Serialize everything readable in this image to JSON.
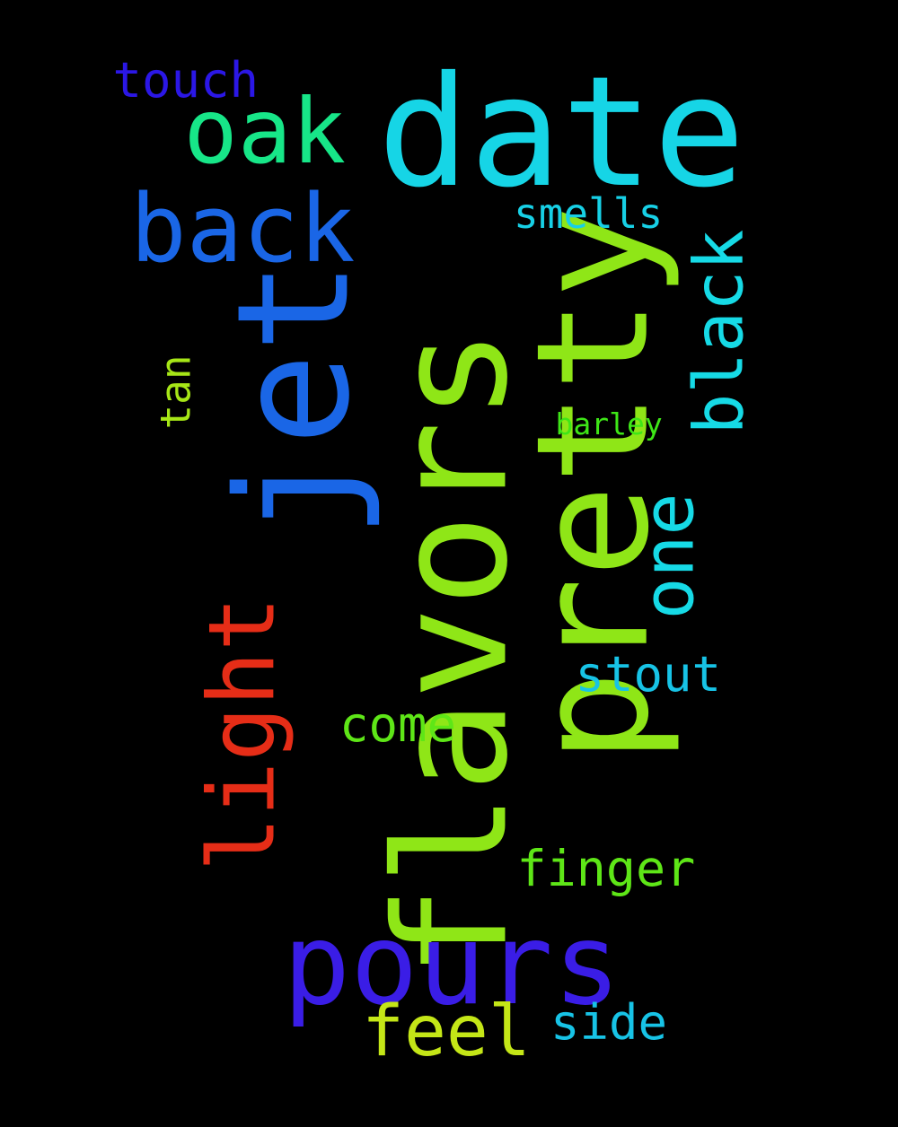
{
  "background": "#000000",
  "words": [
    {
      "text": "flavors",
      "color": "#8fe617",
      "orientation": "vertical"
    },
    {
      "text": "pretty",
      "color": "#8fe617",
      "orientation": "vertical"
    },
    {
      "text": "date",
      "color": "#16d5e6",
      "orientation": "horizontal"
    },
    {
      "text": "jet",
      "color": "#1a66e6",
      "orientation": "vertical"
    },
    {
      "text": "pours",
      "color": "#3a1de6",
      "orientation": "horizontal"
    },
    {
      "text": "back",
      "color": "#1a66e6",
      "orientation": "horizontal"
    },
    {
      "text": "light",
      "color": "#e62d17",
      "orientation": "vertical"
    },
    {
      "text": "oak",
      "color": "#17e688",
      "orientation": "horizontal"
    },
    {
      "text": "one",
      "color": "#16dae6",
      "orientation": "vertical"
    },
    {
      "text": "black",
      "color": "#16dae6",
      "orientation": "vertical"
    },
    {
      "text": "feel",
      "color": "#c4e617",
      "orientation": "horizontal"
    },
    {
      "text": "finger",
      "color": "#5ee617",
      "orientation": "horizontal"
    },
    {
      "text": "stout",
      "color": "#17c3e6",
      "orientation": "horizontal"
    },
    {
      "text": "come",
      "color": "#5ee617",
      "orientation": "horizontal"
    },
    {
      "text": "side",
      "color": "#17c3e6",
      "orientation": "horizontal"
    },
    {
      "text": "touch",
      "color": "#2b17e6",
      "orientation": "horizontal"
    },
    {
      "text": "smells",
      "color": "#17d0e6",
      "orientation": "horizontal"
    },
    {
      "text": "tan",
      "color": "#a6e617",
      "orientation": "vertical"
    },
    {
      "text": "barley",
      "color": "#3ee617",
      "orientation": "horizontal"
    }
  ]
}
